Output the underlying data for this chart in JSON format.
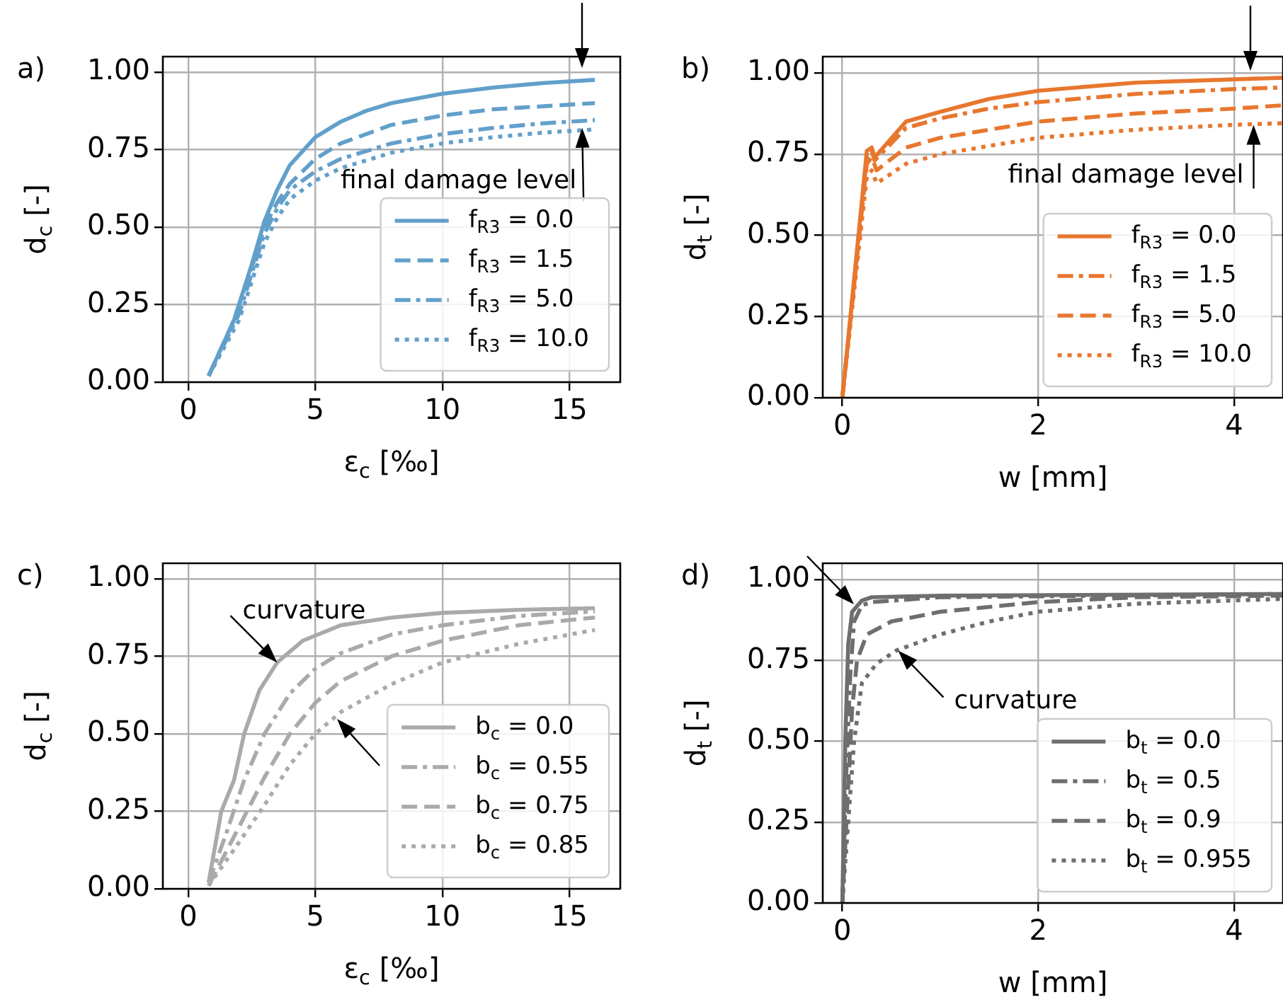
{
  "chart_data": [
    {
      "type": "line",
      "title": "a)",
      "xlabel": "ε$_{c}$ [‰]",
      "ylabel": "d$_{c}$ [-]",
      "xlim": [
        -1,
        17
      ],
      "xticks": [
        0,
        5,
        10,
        15
      ],
      "ylim": [
        0,
        1.05
      ],
      "yticks": [
        {
          "value": 0,
          "label": "0.00"
        },
        {
          "value": 0.25,
          "label": "0.25"
        },
        {
          "value": 0.5,
          "label": "0.50"
        },
        {
          "value": 0.75,
          "label": "0.75"
        },
        {
          "value": 1,
          "label": "1.00"
        }
      ],
      "grid": true,
      "legend": "bottom right",
      "marker": "none",
      "annotations": [
        {
          "text": "final damage level",
          "x": 15.5,
          "y": 0.82
        }
      ],
      "series": [
        {
          "name": "f$_{R3}$ = 0.0",
          "color": "#62a0cb",
          "line_style": "solid",
          "x": [
            0.8,
            1.8,
            2.5,
            3,
            3.5,
            4,
            5,
            6,
            7,
            8,
            10,
            12,
            14,
            16
          ],
          "values": [
            0.02,
            0.2,
            0.38,
            0.52,
            0.62,
            0.7,
            0.79,
            0.84,
            0.875,
            0.9,
            0.93,
            0.95,
            0.965,
            0.975
          ]
        },
        {
          "name": "f$_{R3}$ = 1.5",
          "color": "#62a0cb",
          "line_style": "dashed",
          "x": [
            0.8,
            1.8,
            2.5,
            3,
            3.5,
            4,
            5,
            6,
            8,
            10,
            12,
            14,
            16
          ],
          "values": [
            0.02,
            0.2,
            0.37,
            0.5,
            0.58,
            0.64,
            0.72,
            0.77,
            0.83,
            0.86,
            0.88,
            0.89,
            0.9
          ]
        },
        {
          "name": "f$_{R3}$ = 5.0",
          "color": "#62a0cb",
          "line_style": "dashdot",
          "x": [
            0.8,
            2,
            3,
            3.5,
            4,
            5,
            6,
            8,
            10,
            12,
            14,
            16
          ],
          "values": [
            0.02,
            0.22,
            0.48,
            0.56,
            0.62,
            0.68,
            0.72,
            0.77,
            0.8,
            0.82,
            0.835,
            0.845
          ]
        },
        {
          "name": "f$_{R3}$ = 10.0",
          "color": "#62a0cb",
          "line_style": "dotted",
          "x": [
            0.8,
            2,
            3,
            3.5,
            4,
            5,
            6,
            8,
            10,
            12,
            14,
            16
          ],
          "values": [
            0.02,
            0.2,
            0.45,
            0.53,
            0.59,
            0.65,
            0.69,
            0.74,
            0.77,
            0.79,
            0.805,
            0.815
          ]
        }
      ]
    },
    {
      "type": "line",
      "title": "b)",
      "xlabel": "w [mm]",
      "ylabel": "d$_{t}$ [-]",
      "xlim": [
        -0.2,
        4.5
      ],
      "xticks": [
        0,
        2,
        4
      ],
      "ylim": [
        0,
        1.05
      ],
      "yticks": [
        {
          "value": 0,
          "label": "0.00"
        },
        {
          "value": 0.25,
          "label": "0.25"
        },
        {
          "value": 0.5,
          "label": "0.50"
        },
        {
          "value": 0.75,
          "label": "0.75"
        },
        {
          "value": 1,
          "label": "1.00"
        }
      ],
      "grid": true,
      "legend": "bottom right",
      "marker": "none",
      "annotations": [
        {
          "text": "final damage level",
          "x": 4.2,
          "y": 0.84
        }
      ],
      "series": [
        {
          "name": "f$_{R3}$ = 0.0",
          "color": "#e8772e",
          "line_style": "solid",
          "x": [
            0,
            0.25,
            0.3,
            0.33,
            0.65,
            1,
            1.5,
            2,
            3,
            4,
            4.5
          ],
          "values": [
            0,
            0.76,
            0.77,
            0.74,
            0.85,
            0.88,
            0.92,
            0.945,
            0.97,
            0.98,
            0.985
          ]
        },
        {
          "name": "f$_{R3}$ = 1.5",
          "color": "#e8772e",
          "line_style": "dashdot",
          "x": [
            0,
            0.25,
            0.3,
            0.33,
            0.65,
            1,
            1.5,
            2,
            3,
            4,
            4.5
          ],
          "values": [
            0,
            0.74,
            0.76,
            0.73,
            0.83,
            0.86,
            0.89,
            0.91,
            0.935,
            0.95,
            0.955
          ]
        },
        {
          "name": "f$_{R3}$ = 5.0",
          "color": "#e8772e",
          "line_style": "dashed",
          "x": [
            0,
            0.25,
            0.3,
            0.35,
            0.65,
            1,
            2,
            3,
            4,
            4.5
          ],
          "values": [
            0,
            0.72,
            0.74,
            0.7,
            0.77,
            0.8,
            0.85,
            0.875,
            0.89,
            0.9
          ]
        },
        {
          "name": "f$_{R3}$ = 10.0",
          "color": "#e8772e",
          "line_style": "dotted",
          "x": [
            0,
            0.25,
            0.3,
            0.35,
            0.65,
            1,
            2,
            3,
            4,
            4.5
          ],
          "values": [
            0,
            0.68,
            0.7,
            0.66,
            0.72,
            0.75,
            0.8,
            0.825,
            0.84,
            0.845
          ]
        }
      ]
    },
    {
      "type": "line",
      "title": "c)",
      "xlabel": "ε$_{c}$ [‰]",
      "ylabel": "d$_{c}$ [-]",
      "xlim": [
        -1,
        17
      ],
      "xticks": [
        0,
        5,
        10,
        15
      ],
      "ylim": [
        0,
        1.05
      ],
      "yticks": [
        {
          "value": 0,
          "label": "0.00"
        },
        {
          "value": 0.25,
          "label": "0.25"
        },
        {
          "value": 0.5,
          "label": "0.50"
        },
        {
          "value": 0.75,
          "label": "0.75"
        },
        {
          "value": 1,
          "label": "1.00"
        }
      ],
      "grid": true,
      "legend": "bottom right",
      "marker": "none",
      "annotations": [
        {
          "text": "curvature",
          "x": 3.5,
          "y": 0.73
        }
      ],
      "series": [
        {
          "name": "b$_{c}$ = 0.0",
          "color": "#aaaaaa",
          "line_style": "solid",
          "x": [
            0.8,
            1.3,
            1.8,
            2.2,
            2.8,
            3.5,
            4.5,
            6,
            8,
            10,
            13,
            16
          ],
          "values": [
            0.02,
            0.25,
            0.35,
            0.5,
            0.64,
            0.73,
            0.8,
            0.85,
            0.875,
            0.89,
            0.9,
            0.905
          ]
        },
        {
          "name": "b$_{c}$ = 0.55",
          "color": "#aaaaaa",
          "line_style": "dashdot",
          "x": [
            0.8,
            1.5,
            2.2,
            3,
            4,
            5,
            6,
            8,
            10,
            13,
            16
          ],
          "values": [
            0.02,
            0.18,
            0.35,
            0.5,
            0.63,
            0.71,
            0.76,
            0.82,
            0.85,
            0.88,
            0.895
          ]
        },
        {
          "name": "b$_{c}$ = 0.75",
          "color": "#aaaaaa",
          "line_style": "dashed",
          "x": [
            0.8,
            2,
            3,
            4,
            5,
            6,
            8,
            10,
            13,
            16
          ],
          "values": [
            0.01,
            0.2,
            0.36,
            0.5,
            0.6,
            0.67,
            0.75,
            0.8,
            0.85,
            0.875
          ]
        },
        {
          "name": "b$_{c}$ = 0.85",
          "color": "#aaaaaa",
          "line_style": "dotted",
          "x": [
            0.8,
            2,
            3,
            4,
            5,
            6,
            8,
            10,
            13,
            16
          ],
          "values": [
            0.01,
            0.15,
            0.27,
            0.4,
            0.5,
            0.57,
            0.66,
            0.73,
            0.79,
            0.835
          ]
        }
      ]
    },
    {
      "type": "line",
      "title": "d)",
      "xlabel": "w [mm]",
      "ylabel": "d$_{t}$ [-]",
      "xlim": [
        -0.2,
        4.5
      ],
      "xticks": [
        0,
        2,
        4
      ],
      "ylim": [
        0,
        1.05
      ],
      "yticks": [
        {
          "value": 0,
          "label": "0.00"
        },
        {
          "value": 0.25,
          "label": "0.25"
        },
        {
          "value": 0.5,
          "label": "0.50"
        },
        {
          "value": 0.75,
          "label": "0.75"
        },
        {
          "value": 1,
          "label": "1.00"
        }
      ],
      "grid": true,
      "legend": "bottom right",
      "marker": "none",
      "annotations": [
        {
          "text": "curvature",
          "x": 0.57,
          "y": 0.78
        }
      ],
      "series": [
        {
          "name": "b$_{t}$ = 0.0",
          "color": "#6e6e6e",
          "line_style": "solid",
          "x": [
            0,
            0.03,
            0.06,
            0.1,
            0.2,
            0.3,
            1,
            4.5
          ],
          "values": [
            0,
            0.5,
            0.8,
            0.9,
            0.935,
            0.945,
            0.95,
            0.955
          ]
        },
        {
          "name": "b$_{t}$ = 0.5",
          "color": "#6e6e6e",
          "line_style": "dashdot",
          "x": [
            0,
            0.04,
            0.08,
            0.12,
            0.2,
            0.3,
            1,
            4.5
          ],
          "values": [
            0,
            0.4,
            0.7,
            0.87,
            0.92,
            0.93,
            0.945,
            0.955
          ]
        },
        {
          "name": "b$_{t}$ = 0.9",
          "color": "#6e6e6e",
          "line_style": "dashed",
          "x": [
            0,
            0.05,
            0.1,
            0.15,
            0.25,
            0.5,
            1,
            2,
            3,
            4.5
          ],
          "values": [
            0,
            0.3,
            0.6,
            0.75,
            0.83,
            0.87,
            0.9,
            0.93,
            0.945,
            0.95
          ]
        },
        {
          "name": "b$_{t}$ = 0.955",
          "color": "#6e6e6e",
          "line_style": "dotted",
          "x": [
            0,
            0.06,
            0.12,
            0.2,
            0.35,
            0.55,
            1,
            1.5,
            2,
            3,
            4.5
          ],
          "values": [
            0,
            0.25,
            0.5,
            0.68,
            0.74,
            0.78,
            0.83,
            0.87,
            0.9,
            0.925,
            0.94
          ]
        }
      ]
    }
  ]
}
